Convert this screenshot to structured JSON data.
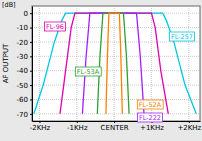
{
  "chart_data": {
    "type": "line",
    "ylabel": "AF OUTPUT",
    "annotations": [
      "[dB]"
    ],
    "xlim": [
      -2.2,
      2.3
    ],
    "xticks": [
      {
        "value": -2,
        "label": "-2KHz"
      },
      {
        "value": -1,
        "label": "-1KHz"
      },
      {
        "value": 0,
        "label": "CENTER"
      },
      {
        "value": 1,
        "label": "+1KHz"
      },
      {
        "value": 2,
        "label": "+2KHz"
      }
    ],
    "ylim": [
      -75,
      5
    ],
    "yticks": [
      0,
      -10,
      -20,
      -30,
      -40,
      -50,
      -60,
      -70
    ],
    "grid": true,
    "series": [
      {
        "name": "FL-257",
        "color": "#00c8e0",
        "x": [
          -2.15,
          -1.9,
          -1.6,
          -1.4,
          -1.3,
          1.3,
          1.4,
          1.6,
          1.9,
          2.2
        ],
        "values": [
          -70,
          -50,
          -20,
          -5,
          0,
          0,
          -5,
          -20,
          -50,
          -70
        ]
      },
      {
        "name": "FL-96",
        "color": "#e000b0",
        "x": [
          -1.45,
          -1.3,
          -1.15,
          -1.05,
          1.0,
          1.1,
          1.25,
          1.45
        ],
        "values": [
          -70,
          -40,
          -10,
          0,
          0,
          -10,
          -40,
          -70
        ]
      },
      {
        "name": "FL-222",
        "color": "#a020ff",
        "x": [
          -0.85,
          -0.75,
          -0.65,
          0.6,
          0.7,
          0.8
        ],
        "values": [
          -70,
          -30,
          0,
          0,
          -30,
          -70
        ]
      },
      {
        "name": "FL-53A",
        "color": "#30a030",
        "x": [
          -0.45,
          -0.38,
          -0.3,
          0.25,
          0.33,
          0.4
        ],
        "values": [
          -70,
          -30,
          0,
          0,
          -30,
          -70
        ]
      },
      {
        "name": "FL-52A",
        "color": "#ff8000",
        "x": [
          -0.22,
          -0.18,
          -0.14,
          0.14,
          0.18,
          0.22
        ],
        "values": [
          -70,
          -30,
          0,
          0,
          -30,
          -70
        ]
      }
    ]
  }
}
